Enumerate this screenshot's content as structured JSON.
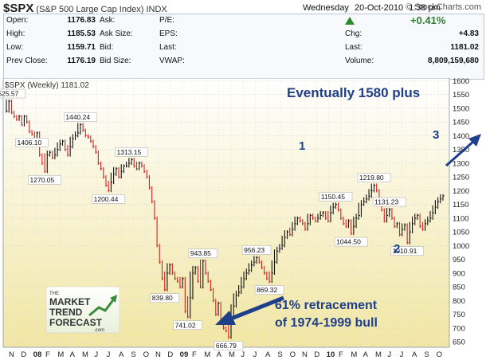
{
  "header": {
    "symbol": "$SPX",
    "name": "(S&P 500 Large Cap Index)",
    "exchange": "INDX",
    "brand": "© StockCharts.com",
    "day": "Wednesday",
    "date": "20-Oct-2010",
    "time": "1:38 pm"
  },
  "quote": {
    "open_label": "Open:",
    "open": "1176.83",
    "high_label": "High:",
    "high": "1185.53",
    "low_label": "Low:",
    "low": "1159.71",
    "prev_label": "Prev Close:",
    "prev": "1176.19",
    "ask_label": "Ask:",
    "ask_size_label": "Ask Size:",
    "bid_label": "Bid:",
    "bid_size_label": "Bid Size:",
    "pe_label": "P/E:",
    "eps_label": "EPS:",
    "last_label": "Last:",
    "vwap_label": "VWAP:",
    "pct_change": "+0.41%",
    "chg_label": "Chg:",
    "chg": "+4.83",
    "last2_label": "Last:",
    "last": "1181.02",
    "volume_label": "Volume:",
    "volume": "8,809,159,680"
  },
  "chart_data": {
    "type": "line",
    "legend": "$SPX (Weekly) 1181.02",
    "ylim": [
      630,
      1610
    ],
    "y_ticks": [
      650,
      700,
      750,
      800,
      850,
      900,
      950,
      1000,
      1050,
      1100,
      1150,
      1200,
      1250,
      1300,
      1350,
      1400,
      1450,
      1500,
      1550,
      1600
    ],
    "x_ticks": [
      "N",
      "D",
      "08",
      "F",
      "M",
      "A",
      "M",
      "J",
      "J",
      "A",
      "S",
      "O",
      "N",
      "D",
      "09",
      "F",
      "M",
      "A",
      "M",
      "J",
      "J",
      "A",
      "S",
      "O",
      "N",
      "D",
      "10",
      "F",
      "M",
      "A",
      "M",
      "J",
      "J",
      "A",
      "S",
      "O"
    ],
    "series": [
      {
        "values": [
          1490,
          1525.57,
          1485,
          1470,
          1460,
          1470,
          1440,
          1470,
          1450,
          1415,
          1406.1,
          1390,
          1410,
          1330,
          1300,
          1270.05,
          1330,
          1340,
          1320,
          1330,
          1350,
          1370,
          1380,
          1350,
          1330,
          1360,
          1390,
          1400,
          1410,
          1440.24,
          1420,
          1400,
          1395,
          1380,
          1360,
          1340,
          1300,
          1280,
          1250,
          1220,
          1200.44,
          1230,
          1260,
          1280,
          1250,
          1270,
          1290,
          1290,
          1300,
          1313.15,
          1290,
          1280,
          1300,
          1290,
          1270,
          1250,
          1210,
          1160,
          1100,
          1000,
          940,
          880,
          839.8,
          900,
          930,
          900,
          880,
          870,
          850,
          880,
          760,
          741.02,
          810,
          900,
          920,
          870,
          850,
          943.85,
          900,
          870,
          840,
          800,
          750,
          790,
          730,
          700,
          690,
          666.79,
          740,
          780,
          820,
          830,
          850,
          880,
          900,
          910,
          930,
          940,
          956.23,
          940,
          920,
          900,
          880,
          869.32,
          900,
          940,
          980,
          990,
          1000,
          1030,
          1050,
          1040,
          1060,
          1080,
          1100,
          1090,
          1080,
          1060,
          1080,
          1110,
          1100,
          1090,
          1100,
          1110,
          1120,
          1100,
          1090,
          1120,
          1140,
          1150.45,
          1130,
          1100,
          1080,
          1070,
          1090,
          1044.5,
          1070,
          1100,
          1110,
          1150,
          1160,
          1170,
          1180,
          1200,
          1219.8,
          1200,
          1170,
          1130,
          1090,
          1110,
          1131.23,
          1100,
          1070,
          1080,
          1040,
          1060,
          1075,
          1010.91,
          1050,
          1080,
          1100,
          1110,
          1070,
          1060,
          1080,
          1090,
          1100,
          1120,
          1140,
          1160,
          1170,
          1181.02
        ]
      }
    ],
    "price_labels": [
      "1525.57",
      "1406.10",
      "1270.05",
      "1440.24",
      "1200.44",
      "1313.15",
      "839.80",
      "741.02",
      "943.85",
      "666.79",
      "956.23",
      "869.32",
      "1150.45",
      "1044.50",
      "1219.80",
      "1131.23",
      "1010.91"
    ],
    "annotations": {
      "headline": "Eventually 1580 plus",
      "wave1": "1",
      "wave2": "2",
      "wave3": "3",
      "retrace_line1": "61% retracement",
      "retrace_line2": "of 1974-1999 bull"
    },
    "watermark": {
      "line1": "THE",
      "line2": "MARKET",
      "line3": "TREND",
      "line4": "FORECAST",
      "line5": ".com"
    },
    "colors": {
      "up": "#111111",
      "down": "#d42020",
      "annotation": "#1f3f8a",
      "arrow": "#1f3f8a"
    }
  }
}
